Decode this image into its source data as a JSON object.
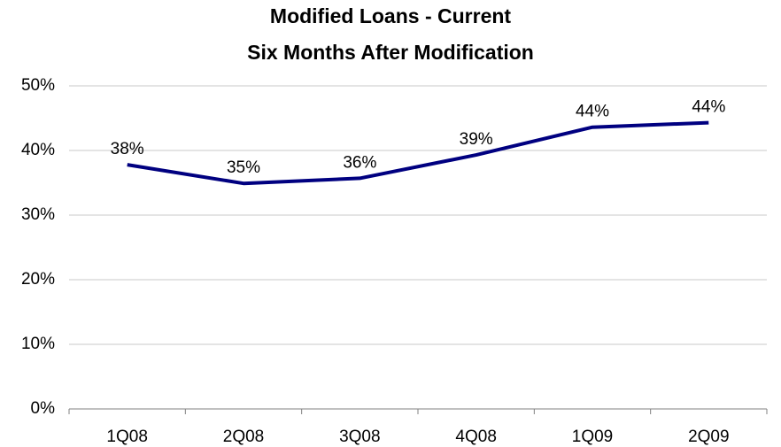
{
  "chart_data": {
    "type": "line",
    "title": [
      "Modified Loans - Current",
      "Six Months After Modification"
    ],
    "categories": [
      "1Q08",
      "2Q08",
      "3Q08",
      "4Q08",
      "1Q09",
      "2Q09"
    ],
    "series": [
      {
        "color": "#000080",
        "values": [
          37.8,
          34.9,
          35.7,
          39.3,
          43.6,
          44.3
        ],
        "value_labels": [
          "38%",
          "35%",
          "36%",
          "39%",
          "44%",
          "44%"
        ]
      }
    ],
    "ylim": [
      0,
      50
    ],
    "yticks": [
      {
        "value": 0,
        "label": "0%"
      },
      {
        "value": 10,
        "label": "10%"
      },
      {
        "value": 20,
        "label": "20%"
      },
      {
        "value": 30,
        "label": "30%"
      },
      {
        "value": 40,
        "label": "40%"
      },
      {
        "value": 50,
        "label": "50%"
      }
    ],
    "grid": true
  }
}
